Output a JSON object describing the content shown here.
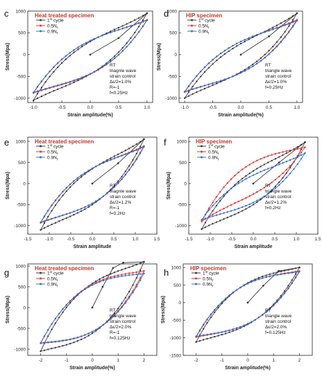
{
  "colors": {
    "cycle1": "#3c3c3c",
    "half": "#e8322b",
    "ninety": "#2f6fd6",
    "title": "#c0392b",
    "axis": "#222222"
  },
  "chart_data": [
    {
      "panel_letter": "c",
      "type": "line",
      "title": "Heat treated specimen",
      "xlabel": "Strain amplitude(%)",
      "ylabel": "Stress(Mpa)",
      "xlim": [
        -1.1,
        1.1
      ],
      "ylim": [
        -1100,
        1000
      ],
      "xticks": [
        -1.0,
        -0.5,
        0.0,
        0.5,
        1.0
      ],
      "xtick_labels": [
        "-1.0",
        "-0.5",
        "0.0",
        "0.5",
        "1.0"
      ],
      "yticks": [
        -1000,
        -500,
        0,
        500,
        1000
      ],
      "ytick_labels": [
        "-1000",
        "-500",
        "0",
        "500",
        "1000"
      ],
      "legend": [
        {
          "name": "1st cycle",
          "base": "1",
          "sup": "st",
          "rest": " cycle"
        },
        {
          "name": "0.5Nf",
          "base": "0.5N",
          "sub": "f"
        },
        {
          "name": "0.9Nf",
          "base": "0.9N",
          "sub": "f"
        }
      ],
      "annotation": [
        "RT",
        "triagnle wave",
        "strain control",
        "Δε/2=1.0%",
        "R=-1",
        "f=0.25Hz"
      ],
      "series": [
        {
          "name": "1st cycle",
          "amp": 1.0,
          "top": 950,
          "bottom": -1050,
          "lower_at_zero": -450,
          "upper_at_zero": 300,
          "initial": [
            [
              0,
              0
            ],
            [
              0.5,
              380
            ],
            [
              1.0,
              950
            ]
          ]
        },
        {
          "name": "0.5Nf",
          "amp": 1.0,
          "top": 800,
          "bottom": -880,
          "lower_at_zero": -450,
          "upper_at_zero": 320
        },
        {
          "name": "0.9Nf",
          "amp": 1.0,
          "top": 790,
          "bottom": -870,
          "lower_at_zero": -440,
          "upper_at_zero": 320
        }
      ]
    },
    {
      "panel_letter": "d",
      "type": "line",
      "title": "HIP specimen",
      "xlabel": "Strain amplitude(%)",
      "ylabel": "Stress(Mpa)",
      "xlim": [
        -1.1,
        1.1
      ],
      "ylim": [
        -1100,
        1000
      ],
      "xticks": [
        -1.0,
        -0.5,
        0.0,
        0.5,
        1.0
      ],
      "xtick_labels": [
        "-1.0",
        "-0.5",
        "0.0",
        "0.5",
        "1.0"
      ],
      "yticks": [
        -1000,
        -500,
        0,
        500,
        1000
      ],
      "ytick_labels": [
        "-1000",
        "-500",
        "0",
        "500",
        "1000"
      ],
      "legend": [
        {
          "name": "1st cycle",
          "base": "1",
          "sup": "st",
          "rest": " cycle"
        },
        {
          "name": "0.5Nf",
          "base": "0.5N",
          "sub": "f"
        },
        {
          "name": "0.9Nf",
          "base": "0.9N",
          "sub": "f"
        }
      ],
      "annotation": [
        "RT",
        "triangle wave",
        "strain control",
        "Δε/2=1.0%",
        "f=0.25Hz"
      ],
      "series": [
        {
          "name": "1st cycle",
          "amp": 1.0,
          "top": 950,
          "bottom": -1000,
          "lower_at_zero": -400,
          "upper_at_zero": 250,
          "initial": [
            [
              0,
              0
            ],
            [
              0.5,
              420
            ],
            [
              1.0,
              950
            ]
          ]
        },
        {
          "name": "0.5Nf",
          "amp": 1.0,
          "top": 800,
          "bottom": -860,
          "lower_at_zero": -420,
          "upper_at_zero": 300
        },
        {
          "name": "0.9Nf",
          "amp": 1.0,
          "top": 780,
          "bottom": -850,
          "lower_at_zero": -420,
          "upper_at_zero": 300
        }
      ]
    },
    {
      "panel_letter": "e",
      "type": "line",
      "title": "Heat treated specimen",
      "xlabel": "Strain amplitude",
      "ylabel": "Stress(Mpa)",
      "xlim": [
        -1.5,
        1.5
      ],
      "ylim": [
        -1200,
        1100
      ],
      "xticks": [
        -1.5,
        -1.0,
        -0.5,
        0.0,
        0.5,
        1.0,
        1.5
      ],
      "xtick_labels": [
        "-1.5",
        "-1.0",
        "-0.5",
        "0.0",
        "0.5",
        "1.0",
        "1.5"
      ],
      "yticks": [
        -1000,
        -500,
        0,
        500,
        1000
      ],
      "ytick_labels": [
        "-1000",
        "-500",
        "0",
        "500",
        "1000"
      ],
      "legend": [
        {
          "name": "1st cycle",
          "base": "1",
          "sup": "st",
          "rest": " cycle"
        },
        {
          "name": "0.5Nf",
          "base": "0.5N",
          "sub": "f"
        },
        {
          "name": "0.9Nf",
          "base": "0.9N",
          "sub": "f"
        }
      ],
      "annotation": [
        "RT",
        "triagnle wave",
        "strain control",
        "Δε/2=1.2%",
        "R=-1",
        "f=0.2Hz"
      ],
      "series": [
        {
          "name": "1st cycle",
          "amp": 1.2,
          "top": 1050,
          "bottom": -1100,
          "lower_at_zero": -500,
          "upper_at_zero": 350,
          "initial": [
            [
              0,
              0
            ],
            [
              0.6,
              480
            ],
            [
              1.2,
              1050
            ]
          ]
        },
        {
          "name": "0.5Nf",
          "amp": 1.2,
          "top": 890,
          "bottom": -930,
          "lower_at_zero": -470,
          "upper_at_zero": 360
        },
        {
          "name": "0.9Nf",
          "amp": 1.2,
          "top": 870,
          "bottom": -920,
          "lower_at_zero": -470,
          "upper_at_zero": 360
        }
      ]
    },
    {
      "panel_letter": "f",
      "type": "line",
      "title": "HIP specimen",
      "xlabel": "Strain amplitude",
      "ylabel": "Stress(Mpa)",
      "xlim": [
        -1.5,
        1.5
      ],
      "ylim": [
        -1200,
        1100
      ],
      "xticks": [
        -1.5,
        -1.0,
        -0.5,
        0.0,
        0.5,
        1.0,
        1.5
      ],
      "xtick_labels": [
        "-1.5",
        "-1.0",
        "-0.5",
        "0.0",
        "0.5",
        "1.0",
        "1.5"
      ],
      "yticks": [
        -1000,
        -500,
        0,
        500,
        1000
      ],
      "ytick_labels": [
        "-1000",
        "-500",
        "0",
        "500",
        "1000"
      ],
      "legend": [
        {
          "name": "1st cycle",
          "base": "1",
          "sup": "st",
          "rest": " cycle"
        },
        {
          "name": "0.5Nf",
          "base": "0.5N",
          "sub": "f"
        },
        {
          "name": "0.9Nf",
          "base": "0.9N",
          "sub": "f"
        }
      ],
      "annotation": [
        "RT",
        "triangle wave",
        "strain control",
        "Δε/2=1.2%",
        "f=0.2Hz"
      ],
      "series": [
        {
          "name": "1st cycle",
          "amp": 1.2,
          "top": 980,
          "bottom": -1080,
          "lower_at_zero": -500,
          "upper_at_zero": 300,
          "initial": [
            [
              0,
              0
            ],
            [
              0.6,
              500
            ],
            [
              1.2,
              980
            ]
          ]
        },
        {
          "name": "0.5Nf",
          "amp": 1.2,
          "top": 860,
          "bottom": -900,
          "lower_at_zero": -250,
          "upper_at_zero": 500
        },
        {
          "name": "0.9Nf",
          "amp": 1.2,
          "top": 720,
          "bottom": -860,
          "lower_at_zero": -450,
          "upper_at_zero": 200
        }
      ]
    },
    {
      "panel_letter": "g",
      "type": "line",
      "title": "Heat treated specimen",
      "xlabel": "Strain amplitude(%)",
      "ylabel": "Stress(Mpa)",
      "xlim": [
        -2.5,
        2.5
      ],
      "ylim": [
        -1150,
        1050
      ],
      "xticks": [
        -2,
        -1,
        0,
        1,
        2
      ],
      "xtick_labels": [
        "-2",
        "-1",
        "0",
        "1",
        "2"
      ],
      "yticks": [
        -1000,
        -500,
        0,
        500,
        1000
      ],
      "ytick_labels": [
        "-1000",
        "-500",
        "0",
        "500",
        "1000"
      ],
      "legend": [
        {
          "name": "1st cycle",
          "base": "1",
          "sup": "st",
          "rest": " cycle"
        },
        {
          "name": "0.5Nf",
          "base": "0.5N",
          "sub": "f"
        },
        {
          "name": "0.9Nf",
          "base": "0.9N",
          "sub": "f"
        }
      ],
      "annotation": [
        "RT",
        "triangle wave",
        "strain control",
        "Δε/2=2.0%",
        "R=-1",
        "f=0.125Hz"
      ],
      "series": [
        {
          "name": "1st cycle",
          "amp": 2.0,
          "top": 1100,
          "bottom": -1050,
          "lower_at_zero": -620,
          "upper_at_zero": 580,
          "initial": [
            [
              0,
              0
            ],
            [
              0.4,
              500
            ],
            [
              0.8,
              950
            ],
            [
              1.2,
              1080
            ],
            [
              2.0,
              1100
            ]
          ]
        },
        {
          "name": "0.5Nf",
          "amp": 2.0,
          "top": 880,
          "bottom": -860,
          "lower_at_zero": -580,
          "upper_at_zero": 560
        },
        {
          "name": "0.9Nf",
          "amp": 2.0,
          "top": 820,
          "bottom": -850,
          "lower_at_zero": -580,
          "upper_at_zero": 540
        }
      ]
    },
    {
      "panel_letter": "h",
      "type": "line",
      "title": "HIP specimen",
      "xlabel": "Strain amplitude(%)",
      "ylabel": "Stress(Mpa)",
      "xlim": [
        -2.5,
        2.5
      ],
      "ylim": [
        -1500,
        1100
      ],
      "xticks": [
        -2,
        -1,
        0,
        1,
        2
      ],
      "xtick_labels": [
        "-2",
        "-1",
        "0",
        "1",
        "2"
      ],
      "yticks": [
        -1500,
        -1000,
        -500,
        0,
        500,
        1000
      ],
      "ytick_labels": [
        "-1500",
        "-1000",
        "-500",
        "0",
        "500",
        "1000"
      ],
      "legend": [
        {
          "name": "1st cycle",
          "base": "1",
          "sup": "st",
          "rest": " cycle"
        },
        {
          "name": "0.5Nf",
          "base": "0.5N",
          "sub": "f"
        },
        {
          "name": "0.9Nf",
          "base": "0.9N",
          "sub": "f"
        }
      ],
      "annotation": [
        "RT",
        "triangle wave",
        "strain control",
        "Δε/2=2.0%",
        "f=0.125Hz"
      ],
      "series": [
        {
          "name": "1st cycle",
          "amp": 2.0,
          "top": 1000,
          "bottom": -1120,
          "lower_at_zero": -620,
          "upper_at_zero": 560,
          "initial": [
            [
              0,
              0
            ],
            [
              0.6,
              480
            ],
            [
              1.2,
              900
            ],
            [
              2.0,
              1000
            ]
          ]
        },
        {
          "name": "0.5Nf",
          "amp": 2.0,
          "top": 900,
          "bottom": -980,
          "lower_at_zero": -600,
          "upper_at_zero": 540
        },
        {
          "name": "0.9Nf",
          "amp": 2.0,
          "top": 880,
          "bottom": -960,
          "lower_at_zero": -600,
          "upper_at_zero": 540
        }
      ]
    }
  ]
}
